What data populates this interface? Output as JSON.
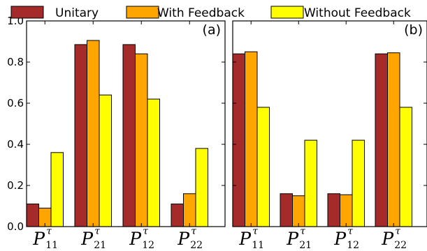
{
  "chart_data": [
    {
      "type": "bar",
      "panel_label": "(a)",
      "categories": [
        {
          "main": "P",
          "sup": "τ",
          "sub": "11"
        },
        {
          "main": "P",
          "sup": "τ",
          "sub": "21"
        },
        {
          "main": "P",
          "sup": "τ",
          "sub": "12"
        },
        {
          "main": "P",
          "sup": "τ",
          "sub": "22"
        }
      ],
      "series": [
        {
          "name": "Unitary",
          "color": "#a52a2a",
          "values": [
            0.11,
            0.885,
            0.885,
            0.11
          ]
        },
        {
          "name": "With Feedback",
          "color": "#ffa500",
          "values": [
            0.09,
            0.905,
            0.84,
            0.16
          ]
        },
        {
          "name": "Without Feedback",
          "color": "#ffff00",
          "values": [
            0.36,
            0.64,
            0.62,
            0.38
          ]
        }
      ],
      "ylim": [
        0,
        1.0
      ],
      "yticks": [
        "0.0",
        "0.2",
        "0.4",
        "0.6",
        "0.8",
        "1.0"
      ],
      "grid": false,
      "legend_position": "top"
    },
    {
      "type": "bar",
      "panel_label": "(b)",
      "categories": [
        {
          "main": "P",
          "sup": "τ",
          "sub": "11"
        },
        {
          "main": "P",
          "sup": "τ",
          "sub": "21"
        },
        {
          "main": "P",
          "sup": "τ",
          "sub": "12"
        },
        {
          "main": "P",
          "sup": "τ",
          "sub": "22"
        }
      ],
      "series": [
        {
          "name": "Unitary",
          "color": "#a52a2a",
          "values": [
            0.84,
            0.16,
            0.16,
            0.84
          ]
        },
        {
          "name": "With Feedback",
          "color": "#ffa500",
          "values": [
            0.85,
            0.15,
            0.155,
            0.845
          ]
        },
        {
          "name": "Without Feedback",
          "color": "#ffff00",
          "values": [
            0.58,
            0.42,
            0.42,
            0.58
          ]
        }
      ],
      "ylim": [
        0,
        1.0
      ],
      "yticks": [],
      "grid": false,
      "legend_position": "top"
    }
  ],
  "legend": [
    {
      "label": "Unitary",
      "color": "#a52a2a"
    },
    {
      "label": "With Feedback",
      "color": "#ffa500"
    },
    {
      "label": "Without Feedback",
      "color": "#ffff00"
    }
  ]
}
